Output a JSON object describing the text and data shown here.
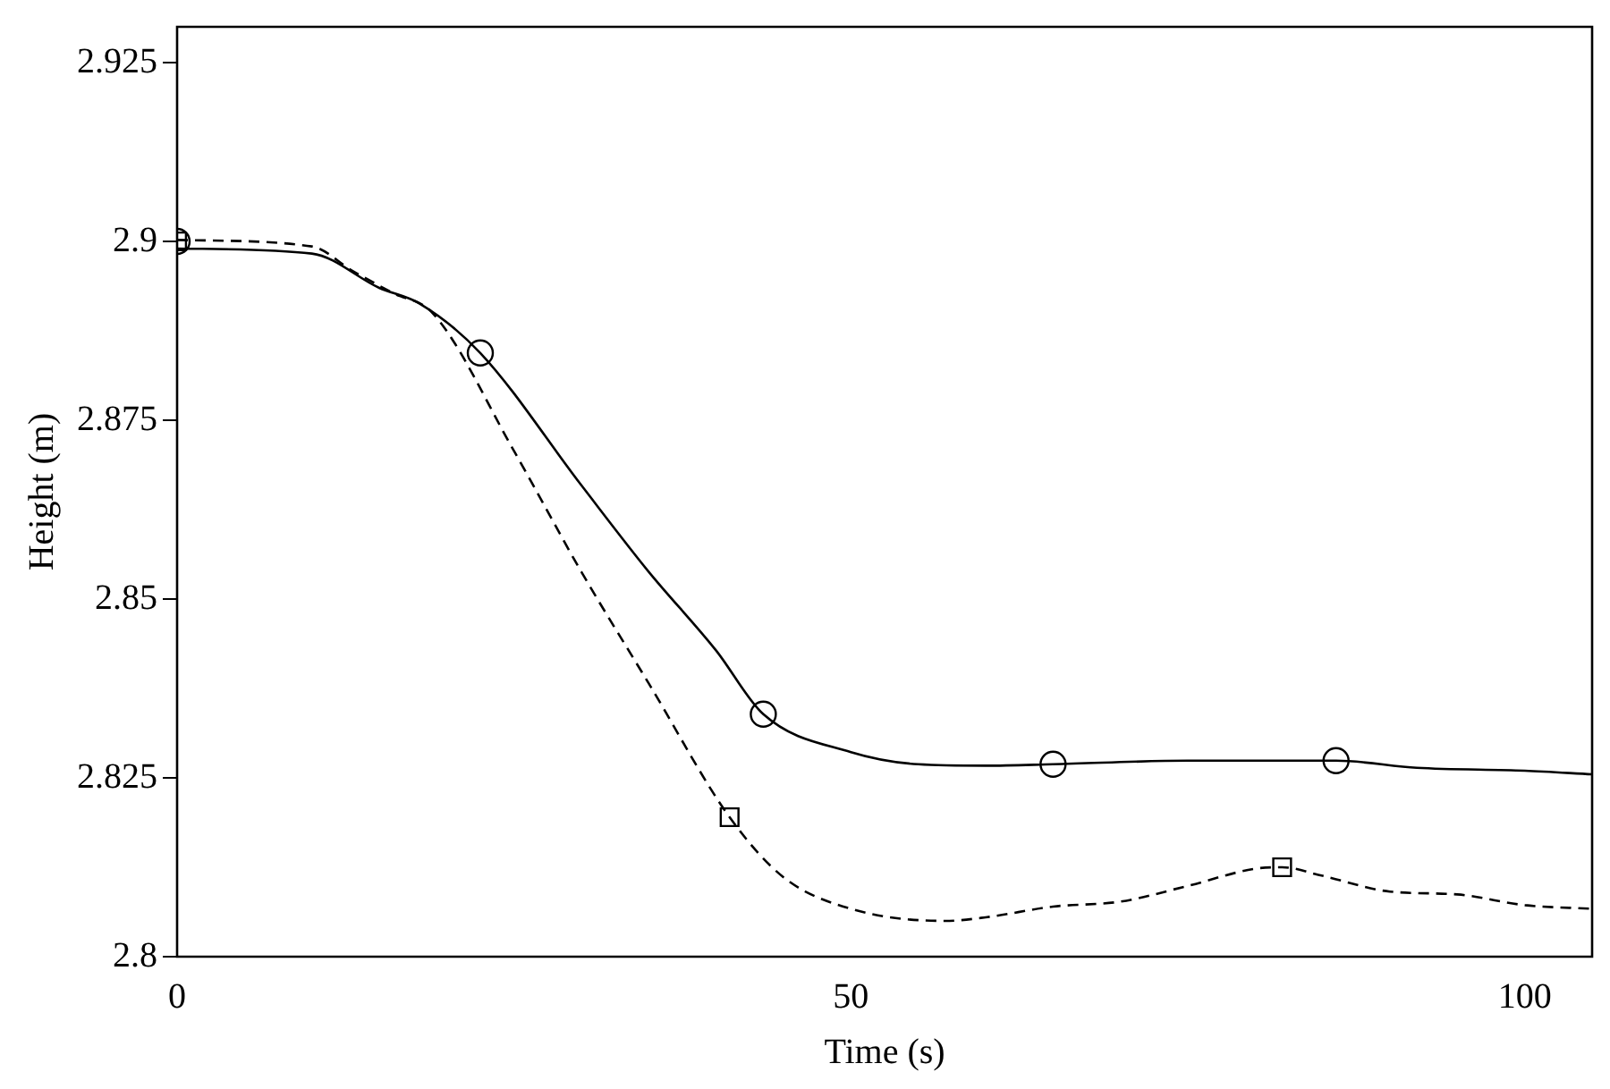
{
  "chart_data": {
    "type": "line",
    "xlabel": "Time (s)",
    "ylabel": "Height (m)",
    "xlim": [
      0,
      105
    ],
    "xticks": [
      0,
      50,
      100
    ],
    "ylim": [
      2.8,
      2.93
    ],
    "yticks": [
      2.8,
      2.825,
      2.85,
      2.875,
      2.9,
      2.925
    ],
    "grid": false,
    "legend": false,
    "series": [
      {
        "color": "#000000",
        "line_style": "solid",
        "marker": "none",
        "x": [
          0,
          10,
          15,
          18,
          22.5,
          30,
          35,
          40,
          43.5,
          50,
          55,
          60,
          65,
          75,
          86,
          92,
          100,
          105
        ],
        "values": [
          2.899,
          2.8983,
          2.8935,
          2.8913,
          2.8844,
          2.8659,
          2.8538,
          2.8428,
          2.8339,
          2.8286,
          2.8269,
          2.8267,
          2.8269,
          2.8274,
          2.8274,
          2.8264,
          2.826,
          2.8255
        ]
      },
      {
        "color": "#000000",
        "line_style": "dashed",
        "marker": "none",
        "x": [
          0,
          10,
          13,
          16,
          19,
          25,
          30,
          35,
          41,
          45,
          50,
          57,
          60,
          65,
          70,
          75,
          80,
          82,
          85,
          90,
          95,
          100,
          105
        ],
        "values": [
          2.9002,
          2.8993,
          2.8959,
          2.8928,
          2.8899,
          2.8707,
          2.8538,
          2.8382,
          2.8195,
          2.8111,
          2.8067,
          2.805,
          2.8055,
          2.807,
          2.8077,
          2.8099,
          2.8123,
          2.8125,
          2.8113,
          2.8091,
          2.8087,
          2.8072,
          2.8067
        ]
      },
      {
        "type": "scatter",
        "color": "#000000",
        "marker": "circle",
        "x": [
          22.5,
          43.5,
          65,
          86,
          0
        ],
        "values": [
          2.8844,
          2.8339,
          2.8269,
          2.8274,
          2.9
        ]
      },
      {
        "type": "scatter",
        "color": "#000000",
        "marker": "square",
        "x": [
          41,
          82,
          0
        ],
        "values": [
          2.8195,
          2.8125,
          2.9
        ]
      }
    ]
  }
}
